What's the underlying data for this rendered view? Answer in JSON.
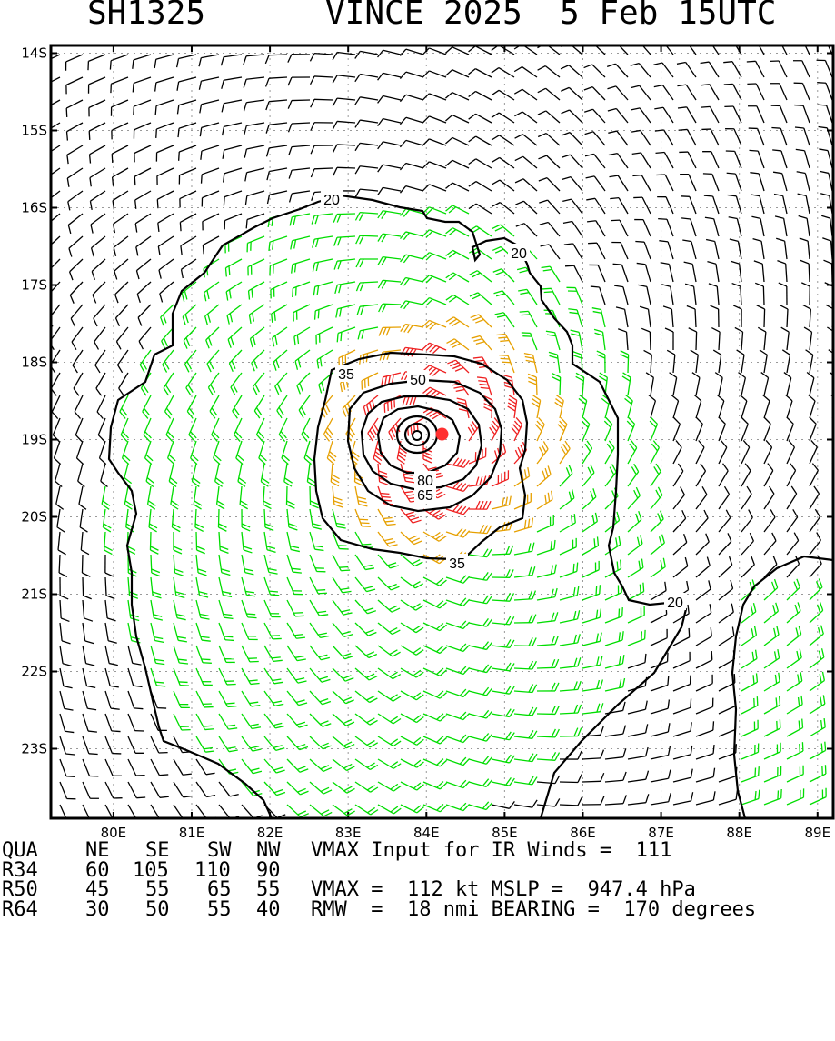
{
  "title": {
    "id": "SH1325",
    "storm": "VINCE 2025",
    "time": "5 Feb 15UTC"
  },
  "map": {
    "lat_labels": [
      "14S",
      "15S",
      "16S",
      "17S",
      "18S",
      "19S",
      "20S",
      "21S",
      "22S",
      "23S"
    ],
    "lon_labels": [
      "80E",
      "81E",
      "82E",
      "83E",
      "84E",
      "85E",
      "86E",
      "87E",
      "88E",
      "89E"
    ],
    "lat_range": [
      -23.9,
      -13.9
    ],
    "lon_range": [
      79.2,
      89.2
    ],
    "center": {
      "lat": -18.93,
      "lon": 84.2
    },
    "contour_labels": [
      "20",
      "20",
      "20",
      "35",
      "35",
      "50",
      "65",
      "80"
    ],
    "colors": {
      "lt34": "#000000",
      "g34": "#00dd00",
      "g50": "#e6a000",
      "g64": "#ee2020",
      "center": "#ff3030"
    }
  },
  "radii": {
    "headers": [
      "QUA",
      "NE",
      "SE",
      "SW",
      "NW"
    ],
    "rows": [
      {
        "label": "R34",
        "vals": [
          "60",
          "105",
          "110",
          "90"
        ]
      },
      {
        "label": "R50",
        "vals": [
          "45",
          "55",
          "65",
          "55"
        ]
      },
      {
        "label": "R64",
        "vals": [
          "30",
          "50",
          "55",
          "40"
        ]
      }
    ]
  },
  "stats": {
    "line1": "VMAX Input for IR Winds =  111",
    "line2": "VMAX =  112 kt MSLP =  947.4 hPa",
    "line3": "RMW  =  18 nmi BEARING =  170 degrees"
  }
}
